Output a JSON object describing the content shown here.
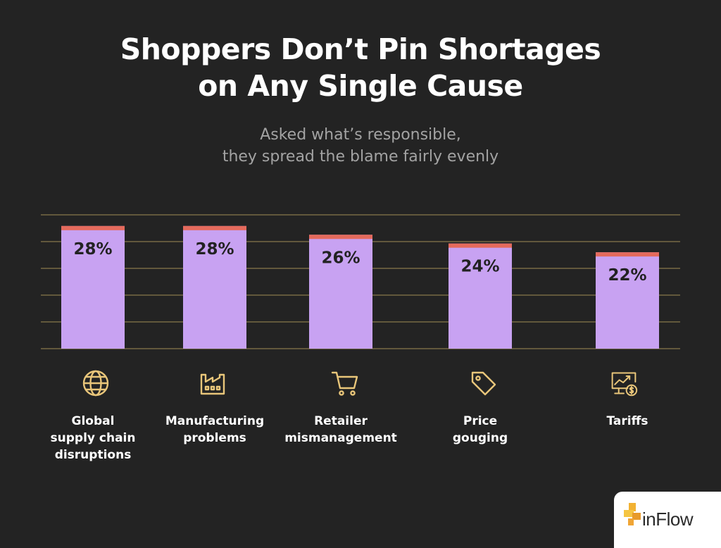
{
  "title_line1": "Shoppers Don’t Pin Shortages",
  "title_line2": "on Any Single Cause",
  "subtitle_line1": "Asked what’s responsible,",
  "subtitle_line2": "they spread the blame fairly evenly",
  "logo": {
    "text": "inFlow"
  },
  "colors": {
    "background": "#232323",
    "bar": "#c8a2f2",
    "bar_cap": "#e46a5c",
    "grid": "#a08c55",
    "icon": "#e9c67a"
  },
  "chart_data": {
    "type": "bar",
    "categories": [
      [
        "Global",
        "supply chain",
        "disruptions"
      ],
      [
        "Manufacturing",
        "problems"
      ],
      [
        "Retailer",
        "mismanagement"
      ],
      [
        "Price",
        "gouging"
      ],
      [
        "Tariffs"
      ]
    ],
    "icons": [
      "globe-icon",
      "factory-icon",
      "shopping-cart-icon",
      "price-tag-icon",
      "chart-monitor-dollar-icon"
    ],
    "values": [
      28,
      28,
      26,
      24,
      22
    ],
    "value_labels": [
      "28%",
      "28%",
      "26%",
      "24%",
      "22%"
    ],
    "grid": true
  }
}
